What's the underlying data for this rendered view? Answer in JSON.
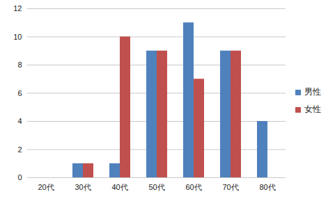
{
  "chart_data": {
    "type": "bar",
    "categories": [
      "20代",
      "30代",
      "40代",
      "50代",
      "60代",
      "70代",
      "80代"
    ],
    "series": [
      {
        "name": "男性",
        "color": "#4f81bd",
        "values": [
          0,
          1,
          1,
          9,
          11,
          9,
          4
        ]
      },
      {
        "name": "女性",
        "color": "#c0504d",
        "values": [
          0,
          1,
          10,
          9,
          7,
          9,
          0
        ]
      }
    ],
    "ylim": [
      0,
      12
    ],
    "yticks": [
      0,
      2,
      4,
      6,
      8,
      10,
      12
    ],
    "grid": true,
    "legend": "right"
  }
}
